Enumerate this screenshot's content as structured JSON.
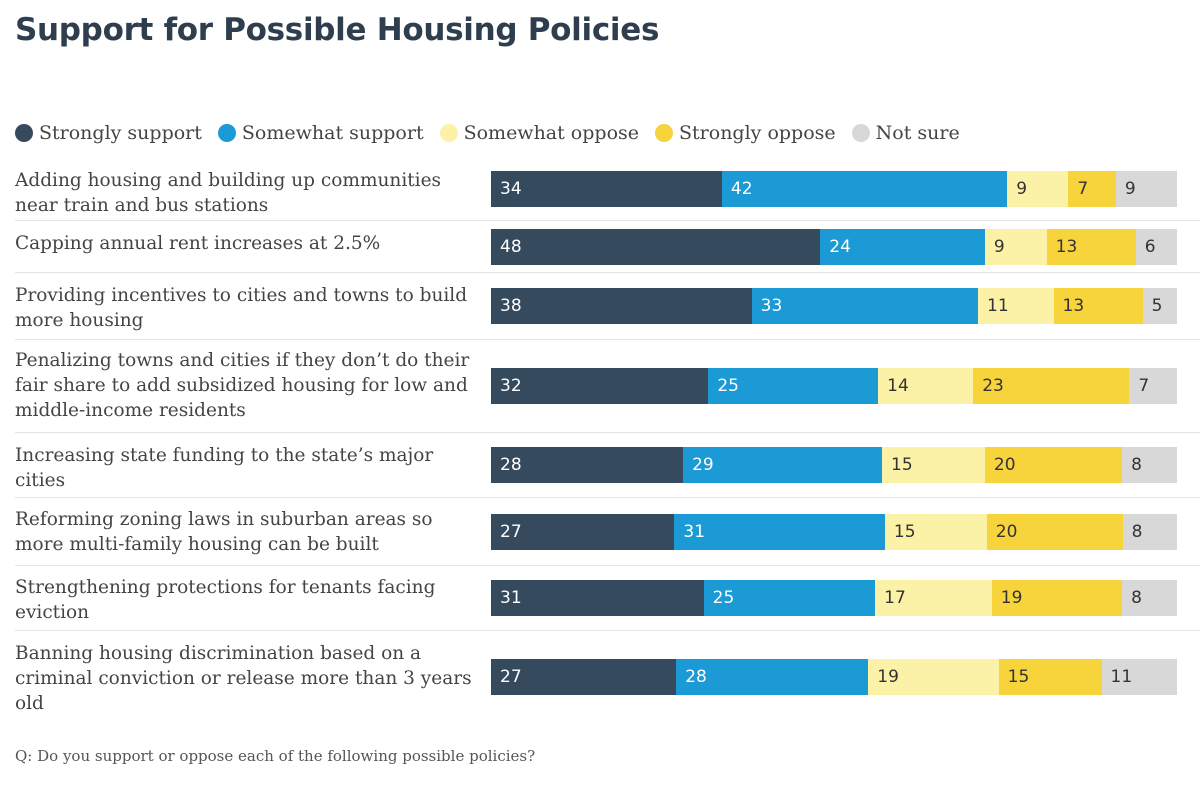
{
  "title": "Support for Possible Housing Policies",
  "footnote": "Q: Do you support or oppose each of the following possible policies?",
  "colors": {
    "strongly_support": "#364a5e",
    "somewhat_support": "#1b9ad6",
    "somewhat_oppose": "#fbf2a8",
    "strongly_oppose": "#f7d33c",
    "not_sure": "#d8d8d8"
  },
  "chart_data": {
    "type": "bar",
    "orientation": "horizontal",
    "stacked": true,
    "title": "Support for Possible Housing Policies",
    "legend_position": "top-left",
    "series": [
      {
        "name": "Strongly support",
        "color": "#364a5e",
        "text_color": "#ffffff"
      },
      {
        "name": "Somewhat support",
        "color": "#1b9ad6",
        "text_color": "#ffffff"
      },
      {
        "name": "Somewhat oppose",
        "color": "#fbf2a8",
        "text_color": "#333333"
      },
      {
        "name": "Strongly oppose",
        "color": "#f7d33c",
        "text_color": "#333333"
      },
      {
        "name": "Not sure",
        "color": "#d8d8d8",
        "text_color": "#333333"
      }
    ],
    "categories": [
      {
        "label": "Adding housing and building up communities near train and bus stations",
        "values": [
          34,
          42,
          9,
          7,
          9
        ]
      },
      {
        "label": "Capping annual rent increases at 2.5%",
        "values": [
          48,
          24,
          9,
          13,
          6
        ]
      },
      {
        "label": "Providing incentives to cities and towns to build more housing",
        "values": [
          38,
          33,
          11,
          13,
          5
        ]
      },
      {
        "label": "Penalizing towns and cities if they don’t do their fair share to add subsidized housing for low and middle-income residents",
        "values": [
          32,
          25,
          14,
          23,
          7
        ]
      },
      {
        "label": "Increasing state funding to the state’s major cities",
        "values": [
          28,
          29,
          15,
          20,
          8
        ]
      },
      {
        "label": "Reforming zoning laws in suburban areas so more multi-family housing can be built",
        "values": [
          27,
          31,
          15,
          20,
          8
        ]
      },
      {
        "label": "Strengthening protections for tenants facing eviction",
        "values": [
          31,
          25,
          17,
          19,
          8
        ]
      },
      {
        "label": "Banning housing discrimination based on a criminal conviction or release more than 3 years old",
        "values": [
          27,
          28,
          19,
          15,
          11
        ]
      }
    ]
  }
}
